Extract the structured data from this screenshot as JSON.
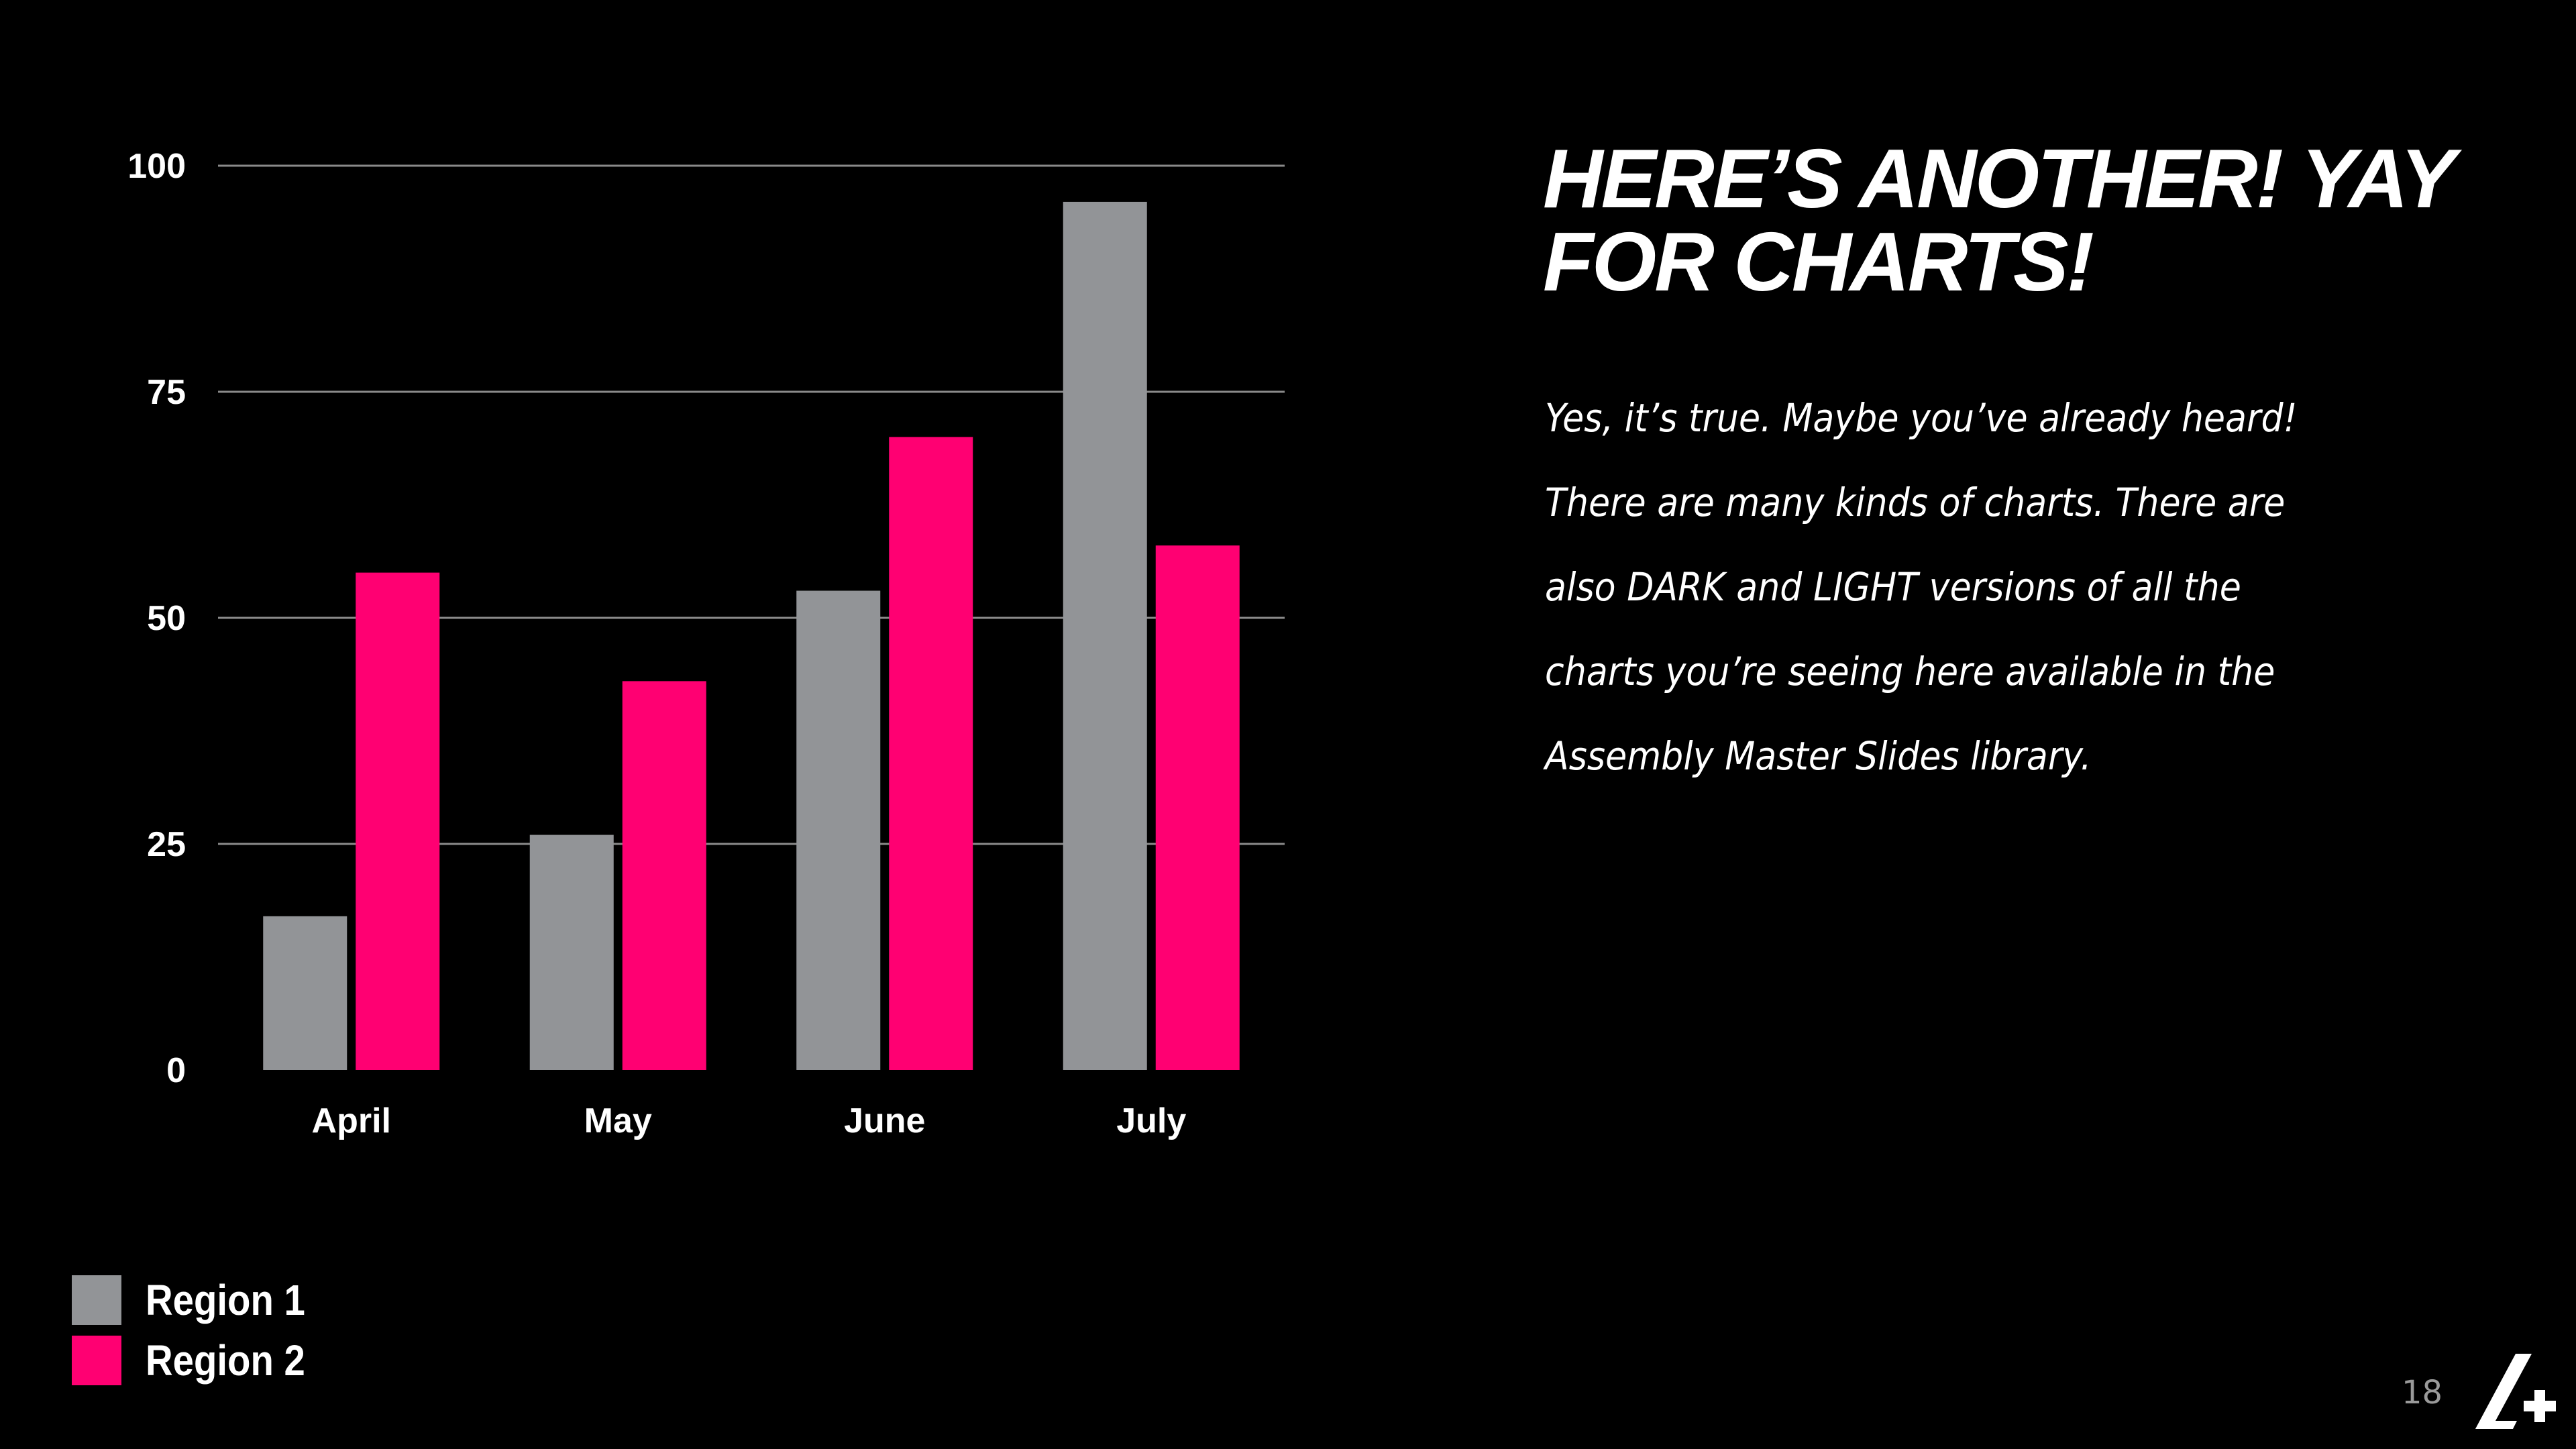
{
  "chart_data": {
    "type": "bar",
    "categories": [
      "April",
      "May",
      "June",
      "July"
    ],
    "series": [
      {
        "name": "Region 1",
        "color": "#929497",
        "values": [
          17,
          26,
          53,
          96
        ]
      },
      {
        "name": "Region 2",
        "color": "#ff0072",
        "values": [
          55,
          43,
          70,
          58
        ]
      }
    ],
    "yticks": [
      "0",
      "25",
      "50",
      "75",
      "100"
    ],
    "ylim": [
      0,
      100
    ],
    "grid": true,
    "legend_position": "bottom-left"
  },
  "slide": {
    "title": "HERE’S ANOTHER! YAY FOR CHARTS!",
    "body_lines": [
      "Yes, it’s true. Maybe you’ve already heard!",
      "There are many kinds of charts. There are",
      "also DARK and LIGHT versions of all the",
      "charts you’re seeing here available in the",
      "Assembly Master Slides library."
    ],
    "page_number": "18"
  },
  "logo": {
    "icon": "assembly-logo-icon",
    "color": "#ffffff"
  }
}
